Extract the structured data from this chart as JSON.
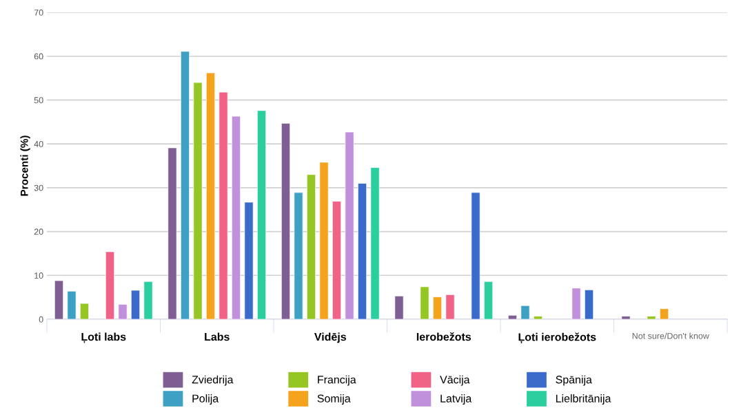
{
  "chart_data": {
    "type": "bar",
    "ylabel": "Procenti (%)",
    "categories": [
      "Ļoti labs",
      "Labs",
      "Vidējs",
      "Ierobežots",
      "Ļoti ierobežots",
      "Not sure/Don't know"
    ],
    "series": [
      {
        "name": "Zviedrija",
        "color": "#7f5f93",
        "values": [
          8.8,
          39.1,
          44.7,
          5.3,
          0.9,
          0.7
        ]
      },
      {
        "name": "Polija",
        "color": "#3ea1c3",
        "values": [
          6.4,
          61.1,
          28.9,
          null,
          3.1,
          null
        ]
      },
      {
        "name": "Francija",
        "color": "#96c623",
        "values": [
          3.6,
          54,
          33,
          7.4,
          0.7,
          0.7
        ]
      },
      {
        "name": "Somija",
        "color": "#f5a21c",
        "values": [
          null,
          56.2,
          35.8,
          5.1,
          null,
          2.4
        ]
      },
      {
        "name": "Vācija",
        "color": "#f06386",
        "values": [
          15.4,
          51.8,
          26.9,
          5.6,
          null,
          null
        ]
      },
      {
        "name": "Latvija",
        "color": "#c190dc",
        "values": [
          3.4,
          46.3,
          42.7,
          null,
          7.1,
          null
        ]
      },
      {
        "name": "Spānija",
        "color": "#3a6bcb",
        "values": [
          6.6,
          26.7,
          31,
          28.9,
          6.7,
          null
        ]
      },
      {
        "name": "Lielbritānija",
        "color": "#2bcf9f",
        "values": [
          8.6,
          47.6,
          34.6,
          8.6,
          null,
          null
        ]
      }
    ],
    "ylim": [
      0,
      70
    ],
    "yticks": [
      0,
      10,
      20,
      30,
      40,
      50,
      60,
      70
    ],
    "grid": "y",
    "legend": "bottom"
  }
}
